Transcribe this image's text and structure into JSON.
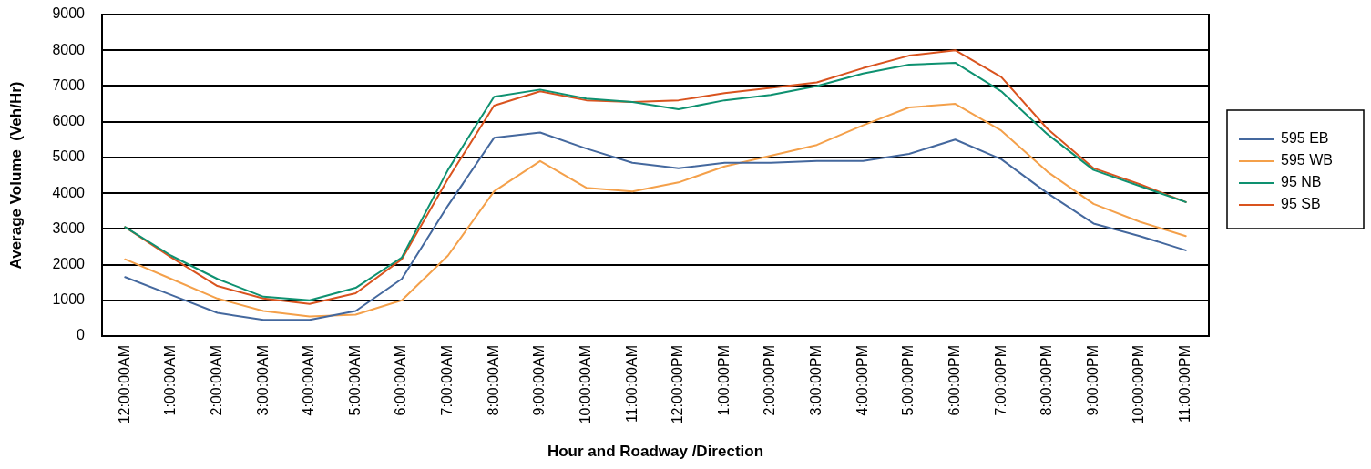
{
  "chart_data": {
    "type": "line",
    "xlabel": "Hour and Roadway /Direction",
    "ylabel": "Average Volume  (Veh/Hr)",
    "categories": [
      "12:00:00AM",
      "1:00:00AM",
      "2:00:00AM",
      "3:00:00AM",
      "4:00:00AM",
      "5:00:00AM",
      "6:00:00AM",
      "7:00:00AM",
      "8:00:00AM",
      "9:00:00AM",
      "10:00:00AM",
      "11:00:00AM",
      "12:00:00PM",
      "1:00:00PM",
      "2:00:00PM",
      "3:00:00PM",
      "4:00:00PM",
      "5:00:00PM",
      "6:00:00PM",
      "7:00:00PM",
      "8:00:00PM",
      "9:00:00PM",
      "10:00:00PM",
      "11:00:00PM"
    ],
    "series": [
      {
        "name": "595 EB",
        "color": "#44689e",
        "values": [
          1650,
          1150,
          650,
          450,
          450,
          700,
          1600,
          3650,
          5550,
          5700,
          5250,
          4850,
          4700,
          4850,
          4850,
          4900,
          4900,
          5100,
          5500,
          4950,
          4000,
          3150,
          2800,
          2400
        ]
      },
      {
        "name": "595 WB",
        "color": "#f4a04a",
        "values": [
          2150,
          1600,
          1050,
          700,
          550,
          600,
          1000,
          2250,
          4050,
          4900,
          4150,
          4050,
          4300,
          4750,
          5050,
          5350,
          5900,
          6400,
          6500,
          5750,
          4600,
          3700,
          3200,
          2800
        ]
      },
      {
        "name": "95 NB",
        "color": "#0e9170",
        "values": [
          3050,
          2250,
          1600,
          1100,
          1000,
          1350,
          2200,
          4650,
          6700,
          6900,
          6650,
          6550,
          6350,
          6600,
          6750,
          7000,
          7350,
          7600,
          7650,
          6850,
          5650,
          4650,
          4200,
          3750
        ]
      },
      {
        "name": "95 SB",
        "color": "#d9531e",
        "values": [
          3050,
          2200,
          1400,
          1050,
          900,
          1200,
          2150,
          4400,
          6450,
          6850,
          6600,
          6550,
          6600,
          6800,
          6950,
          7100,
          7500,
          7850,
          8000,
          7250,
          5800,
          4700,
          4250,
          3750
        ]
      }
    ],
    "ylim": [
      0,
      9000
    ],
    "yticks": [
      0,
      1000,
      2000,
      3000,
      4000,
      5000,
      6000,
      7000,
      8000,
      9000
    ],
    "grid": "y",
    "legend": "right",
    "marker": "none",
    "line_style": "solid"
  }
}
